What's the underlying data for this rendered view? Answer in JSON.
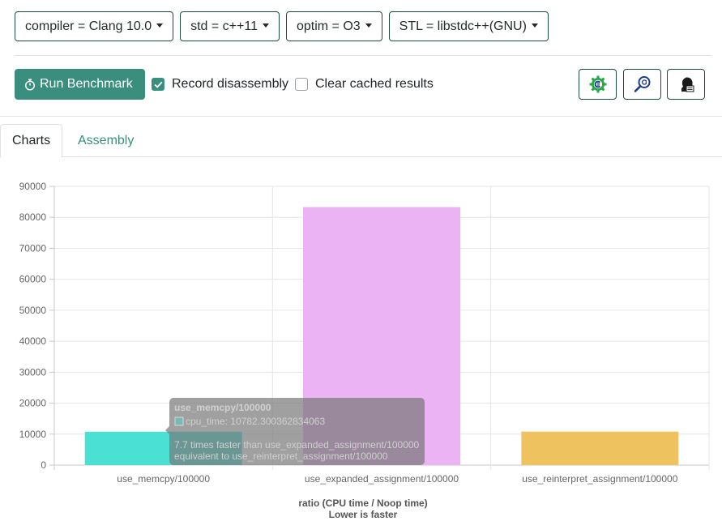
{
  "toolbar": {
    "dropdowns": [
      {
        "label": "compiler = Clang 10.0"
      },
      {
        "label": "std = c++11"
      },
      {
        "label": "optim = O3"
      },
      {
        "label": "STL = libstdc++(GNU)"
      }
    ],
    "run_label": "Run Benchmark",
    "record_label": "Record disassembly",
    "record_checked": true,
    "clear_label": "Clear cached results",
    "clear_checked": false
  },
  "tabs": [
    {
      "label": "Charts",
      "active": true
    },
    {
      "label": "Assembly",
      "active": false
    }
  ],
  "chart_data": {
    "type": "bar",
    "categories": [
      "use_memcpy/100000",
      "use_expanded_assignment/100000",
      "use_reinterpret_assignment/100000"
    ],
    "values": [
      10782.3,
      83300,
      10800
    ],
    "colors": [
      "#4be0d4",
      "#ebb2f4",
      "#eec25e"
    ],
    "ylim": [
      0,
      90000
    ],
    "yticks": [
      0,
      10000,
      20000,
      30000,
      40000,
      50000,
      60000,
      70000,
      80000,
      90000
    ],
    "xlabel": "ratio (CPU time / Noop time)",
    "xlabel2": "Lower is faster",
    "grid": true,
    "tooltip": {
      "title": "use_memcpy/100000",
      "line": "cpu_time: 10782.300362834063",
      "note1": "7.7 times faster than use_expanded_assignment/100000",
      "note2": "equivalent to use_reinterpret_assignment/100000"
    }
  }
}
